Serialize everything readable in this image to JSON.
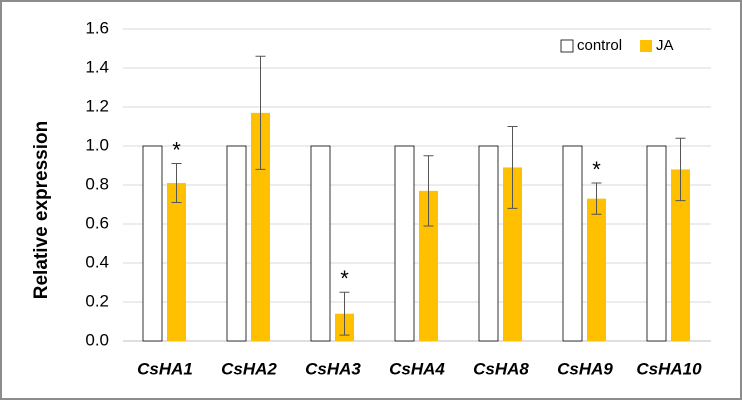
{
  "chart_data": {
    "type": "bar",
    "y_label": "Relative expression",
    "categories": [
      "CsHA1",
      "CsHA2",
      "CsHA3",
      "CsHA4",
      "CsHA8",
      "CsHA9",
      "CsHA10"
    ],
    "series": [
      {
        "name": "control",
        "color": "#ffffff",
        "values": [
          1,
          1,
          1,
          1,
          1,
          1,
          1
        ]
      },
      {
        "name": "JA",
        "color": "#ffc000",
        "values": [
          0.81,
          1.17,
          0.14,
          0.77,
          0.89,
          0.73,
          0.88
        ],
        "errors": [
          0.1,
          0.29,
          0.11,
          0.18,
          0.21,
          0.08,
          0.16
        ]
      }
    ],
    "significance": [
      "*",
      null,
      "*",
      null,
      null,
      "*",
      null
    ],
    "ylim": [
      0,
      1.6
    ],
    "yticks": [
      {
        "value": 0,
        "label": "0.0"
      },
      0.2,
      0.4,
      0.6,
      0.8,
      {
        "value": 1,
        "label": "1.0"
      },
      1.2,
      1.4,
      1.6
    ],
    "grid": true,
    "legend": "top-right"
  }
}
